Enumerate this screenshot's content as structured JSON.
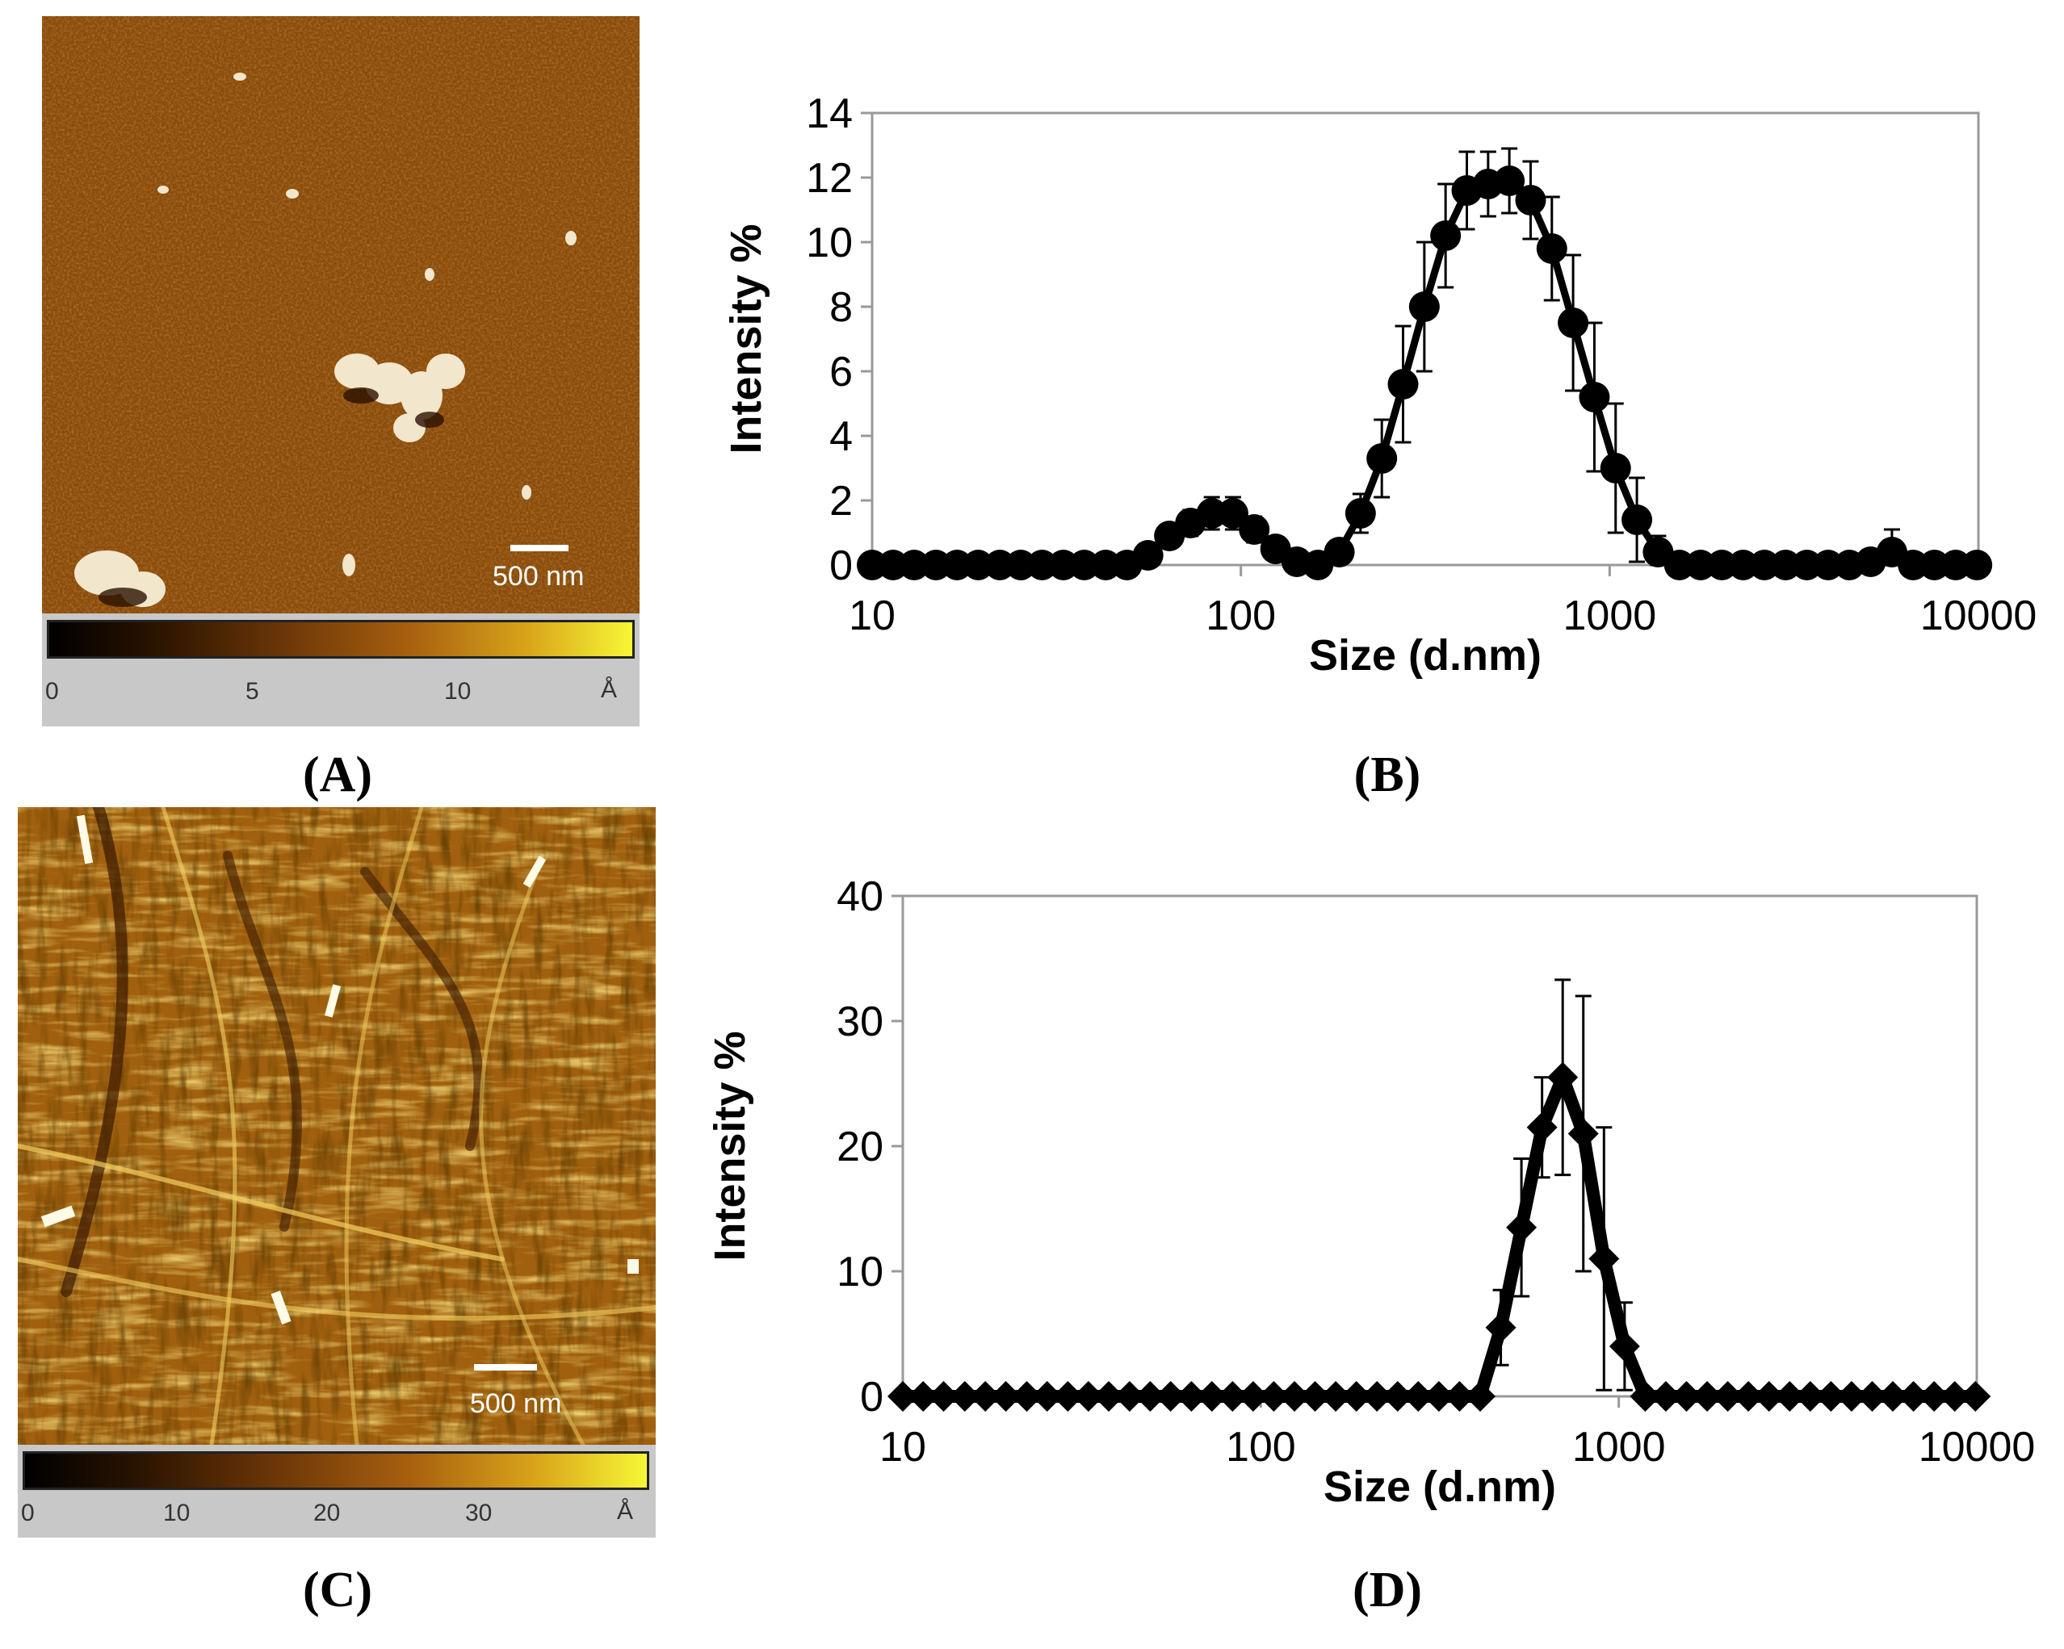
{
  "panels": {
    "A": {
      "label_open": "(",
      "label_letter": "A",
      "label_close": ")",
      "scalebar_text": "500 nm",
      "colorbar_ticks": [
        "0",
        "5",
        "10"
      ],
      "colorbar_unit": "Å",
      "colors": {
        "dark": "#2a1300",
        "mid": "#8a4a0c",
        "light": "#f7f736"
      }
    },
    "B": {
      "label_open": "(",
      "label_letter": "B",
      "label_close": ")"
    },
    "C": {
      "label_open": "(",
      "label_letter": "C",
      "label_close": ")",
      "scalebar_text": "500 nm",
      "colorbar_ticks": [
        "0",
        "10",
        "20",
        "30"
      ],
      "colorbar_unit": "Å",
      "colors": {
        "dark": "#1a0a00",
        "mid": "#9a5a10",
        "light": "#f7f736"
      }
    },
    "D": {
      "label_open": "(",
      "label_letter": "D",
      "label_close": ")"
    }
  },
  "chart_data": [
    {
      "panel": "B",
      "type": "line",
      "xscale": "log",
      "xlim": [
        10,
        10000
      ],
      "ylim": [
        0,
        14
      ],
      "xticks": [
        "10",
        "100",
        "1000",
        "10000"
      ],
      "yticks": [
        "0",
        "2",
        "4",
        "6",
        "8",
        "10",
        "12",
        "14"
      ],
      "xlabel": "Size (d.nm)",
      "ylabel": "Intensity %",
      "marker": "circle",
      "series": [
        {
          "name": "Intensity",
          "x": [
            10,
            11.4,
            13.0,
            14.9,
            17.0,
            19.4,
            22.2,
            25.3,
            28.9,
            33.0,
            37.6,
            43.0,
            49.1,
            56.0,
            64.0,
            73.0,
            83.4,
            95.2,
            108.7,
            124.2,
            141.8,
            161.9,
            184.9,
            211.1,
            241.1,
            275.3,
            314.4,
            359.0,
            410.0,
            468.2,
            534.6,
            610.5,
            697.1,
            796.0,
            909.1,
            1038.1,
            1185.4,
            1353.6,
            1545.7,
            1765.1,
            2015.6,
            2301.6,
            2628.2,
            3001.2,
            3427.2,
            3913.6,
            4469.1,
            5103.3,
            5827.5,
            6654.6,
            7599.0,
            8677.5,
            9909.2
          ],
          "y": [
            0,
            0,
            0,
            0,
            0,
            0,
            0,
            0,
            0,
            0,
            0,
            0,
            0,
            0.3,
            0.9,
            1.3,
            1.6,
            1.6,
            1.1,
            0.5,
            0.1,
            0,
            0.4,
            1.6,
            3.3,
            5.6,
            8.0,
            10.2,
            11.6,
            11.8,
            11.9,
            11.3,
            9.8,
            7.5,
            5.2,
            3.0,
            1.4,
            0.4,
            0,
            0,
            0,
            0,
            0,
            0,
            0,
            0,
            0,
            0.1,
            0.4,
            0,
            0,
            0,
            0
          ],
          "error": [
            0,
            0,
            0,
            0,
            0,
            0,
            0,
            0,
            0,
            0,
            0,
            0,
            0,
            0.2,
            0.3,
            0.4,
            0.5,
            0.5,
            0.4,
            0.3,
            0.1,
            0,
            0.3,
            0.6,
            1.2,
            1.8,
            2.0,
            1.6,
            1.2,
            1.0,
            1.0,
            1.2,
            1.6,
            2.1,
            2.3,
            2.0,
            1.3,
            0.5,
            0,
            0,
            0,
            0,
            0,
            0,
            0,
            0,
            0,
            0.2,
            0.7,
            0,
            0,
            0,
            0
          ]
        }
      ]
    },
    {
      "panel": "D",
      "type": "line",
      "xscale": "log",
      "xlim": [
        10,
        10000
      ],
      "ylim": [
        0,
        40
      ],
      "xticks": [
        "10",
        "100",
        "1000",
        "10000"
      ],
      "yticks": [
        "0",
        "10",
        "20",
        "30",
        "40"
      ],
      "xlabel": "Size (d.nm)",
      "ylabel": "Intensity %",
      "marker": "diamond",
      "series": [
        {
          "name": "Intensity",
          "x": [
            10,
            11.4,
            13.0,
            14.9,
            17.0,
            19.4,
            22.2,
            25.3,
            28.9,
            33.0,
            37.6,
            43.0,
            49.1,
            56.0,
            64.0,
            73.0,
            83.4,
            95.2,
            108.7,
            124.2,
            141.8,
            161.9,
            184.9,
            211.1,
            241.1,
            275.3,
            314.4,
            359.0,
            410.0,
            468.2,
            534.6,
            610.5,
            697.1,
            796.0,
            909.1,
            1038.1,
            1185.4,
            1353.6,
            1545.7,
            1765.1,
            2015.6,
            2301.6,
            2628.2,
            3001.2,
            3427.2,
            3913.6,
            4469.1,
            5103.3,
            5827.5,
            6654.6,
            7599.0,
            8677.5,
            9909.2
          ],
          "y": [
            0,
            0,
            0,
            0,
            0,
            0,
            0,
            0,
            0,
            0,
            0,
            0,
            0,
            0,
            0,
            0,
            0,
            0,
            0,
            0,
            0,
            0,
            0,
            0,
            0,
            0,
            0,
            0,
            0,
            5.5,
            13.5,
            21.5,
            25.5,
            21.0,
            11.0,
            4.0,
            0,
            0,
            0,
            0,
            0,
            0,
            0,
            0,
            0,
            0,
            0,
            0,
            0,
            0,
            0,
            0,
            0
          ],
          "error": [
            0,
            0,
            0,
            0,
            0,
            0,
            0,
            0,
            0,
            0,
            0,
            0,
            0,
            0,
            0,
            0,
            0,
            0,
            0,
            0,
            0,
            0,
            0,
            0,
            0,
            0,
            0,
            0,
            0,
            3.0,
            5.5,
            4.0,
            7.8,
            11.0,
            10.5,
            3.5,
            0,
            0,
            0,
            0,
            0,
            0,
            0,
            0,
            0,
            0,
            0,
            0,
            0,
            0,
            0,
            0,
            0
          ]
        }
      ]
    }
  ]
}
